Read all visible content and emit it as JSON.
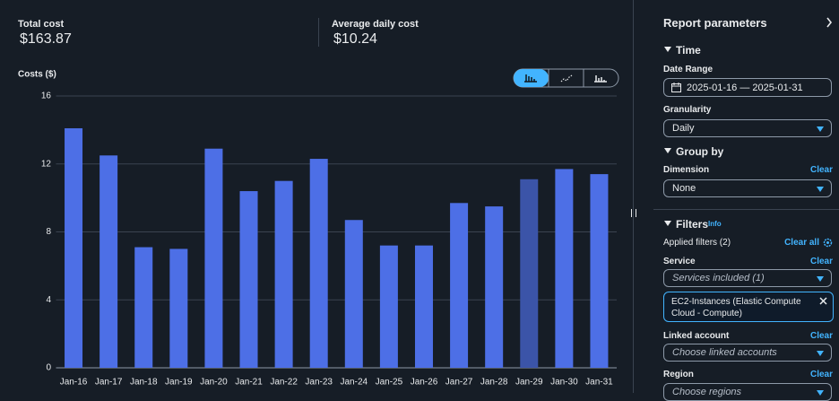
{
  "summary": {
    "total_label": "Total cost",
    "total_value": "$163.87",
    "average_label": "Average daily cost",
    "average_value": "$10.24"
  },
  "chart_data": {
    "type": "bar",
    "y_label": "Costs ($)",
    "categories": [
      "Jan-16",
      "Jan-17",
      "Jan-18",
      "Jan-19",
      "Jan-20",
      "Jan-21",
      "Jan-22",
      "Jan-23",
      "Jan-24",
      "Jan-25",
      "Jan-26",
      "Jan-27",
      "Jan-28",
      "Jan-29",
      "Jan-30",
      "Jan-31"
    ],
    "values": [
      14.1,
      12.5,
      7.1,
      7.0,
      12.9,
      10.4,
      11.0,
      12.3,
      8.7,
      7.2,
      7.2,
      9.7,
      9.5,
      11.1,
      11.7,
      11.4
    ],
    "color": "#4d6fe6",
    "colors": [
      "#4d6fe6",
      "#4d6fe6",
      "#4d6fe6",
      "#4d6fe6",
      "#4d6fe6",
      "#4d6fe6",
      "#4d6fe6",
      "#4d6fe6",
      "#4d6fe6",
      "#4d6fe6",
      "#4d6fe6",
      "#4d6fe6",
      "#4d6fe6",
      "#3b54a8",
      "#4d6fe6",
      "#4d6fe6"
    ],
    "ylim": [
      0,
      16
    ],
    "yticks": [
      0,
      4,
      8,
      12,
      16
    ],
    "grid": true
  },
  "panel": {
    "title": "Report parameters",
    "time": {
      "heading": "Time",
      "date_range_label": "Date Range",
      "date_range": "2025-01-16 — 2025-01-31",
      "granularity_label": "Granularity",
      "granularity": "Daily"
    },
    "group_by": {
      "heading": "Group by",
      "dimension_label": "Dimension",
      "clear": "Clear",
      "dimension": "None"
    },
    "filters": {
      "heading": "Filters",
      "info": "Info",
      "applied": "Applied filters (2)",
      "clear_all": "Clear all",
      "service_label": "Service",
      "service_clear": "Clear",
      "service_placeholder": "Services included (1)",
      "service_token": "EC2-Instances (Elastic Compute Cloud - Compute)",
      "linked_label": "Linked account",
      "linked_clear": "Clear",
      "linked_placeholder": "Choose linked accounts",
      "region_label": "Region",
      "region_clear": "Clear",
      "region_placeholder": "Choose regions"
    }
  }
}
